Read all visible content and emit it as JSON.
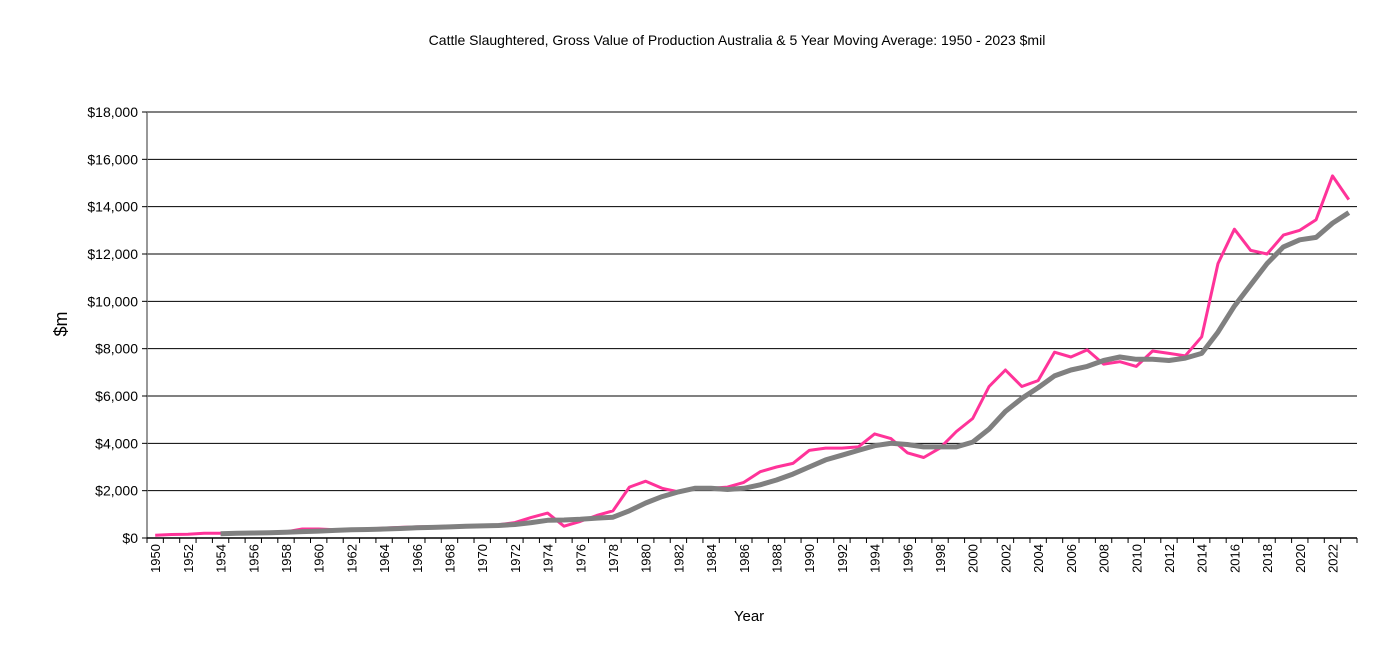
{
  "chart_data": {
    "type": "line",
    "title": "Cattle Slaughtered, Gross Value of Production Australia & 5 Year Moving Average: 1950 - 2023 $mil",
    "xlabel": "Year",
    "ylabel": "$m",
    "ylim": [
      0,
      18000
    ],
    "yticks": [
      "$0",
      "$2,000",
      "$4,000",
      "$6,000",
      "$8,000",
      "$10,000",
      "$12,000",
      "$14,000",
      "$16,000",
      "$18,000"
    ],
    "ytick_values": [
      0,
      2000,
      4000,
      6000,
      8000,
      10000,
      12000,
      14000,
      16000,
      18000
    ],
    "xlim": [
      1950,
      2023
    ],
    "xtick_labels": [
      "1950",
      "1952",
      "1954",
      "1956",
      "1958",
      "1960",
      "1962",
      "1964",
      "1966",
      "1968",
      "1970",
      "1972",
      "1974",
      "1976",
      "1978",
      "1980",
      "1982",
      "1984",
      "1986",
      "1988",
      "1990",
      "1992",
      "1994",
      "1996",
      "1998",
      "2000",
      "2002",
      "2004",
      "2006",
      "2008",
      "2010",
      "2012",
      "2014",
      "2016",
      "2018",
      "2020",
      "2022"
    ],
    "grid": true,
    "legend": "none",
    "series": [
      {
        "name": "Gross Value of Production",
        "color": "#ff3399",
        "x_start": 1950,
        "values": [
          120,
          150,
          160,
          200,
          200,
          220,
          230,
          240,
          260,
          380,
          380,
          350,
          360,
          380,
          420,
          450,
          470,
          480,
          500,
          520,
          520,
          560,
          650,
          870,
          1050,
          500,
          700,
          950,
          1150,
          2150,
          2400,
          2100,
          1950,
          2100,
          2100,
          2150,
          2350,
          2800,
          3000,
          3150,
          3700,
          3800,
          3800,
          3850,
          4400,
          4200,
          3600,
          3400,
          3800,
          4500,
          5050,
          6400,
          7100,
          6400,
          6650,
          7850,
          7650,
          7950,
          7350,
          7450,
          7250,
          7900,
          7800,
          7700,
          8500,
          11600,
          13050,
          12150,
          12000,
          12800,
          13000,
          13450,
          15300,
          14300
        ]
      },
      {
        "name": "5 Year Moving Average",
        "color": "#808080",
        "x_start": 1954,
        "values": [
          180,
          200,
          210,
          220,
          240,
          270,
          290,
          320,
          350,
          360,
          380,
          400,
          430,
          450,
          470,
          500,
          510,
          530,
          570,
          650,
          750,
          760,
          790,
          840,
          880,
          1150,
          1480,
          1750,
          1950,
          2100,
          2100,
          2050,
          2100,
          2250,
          2450,
          2700,
          3000,
          3300,
          3500,
          3700,
          3900,
          4000,
          3950,
          3850,
          3850,
          3850,
          4050,
          4600,
          5350,
          5900,
          6350,
          6850,
          7100,
          7250,
          7500,
          7650,
          7550,
          7550,
          7500,
          7600,
          7800,
          8700,
          9800,
          10700,
          11600,
          12300,
          12600,
          12700,
          13300,
          13750
        ]
      }
    ]
  }
}
